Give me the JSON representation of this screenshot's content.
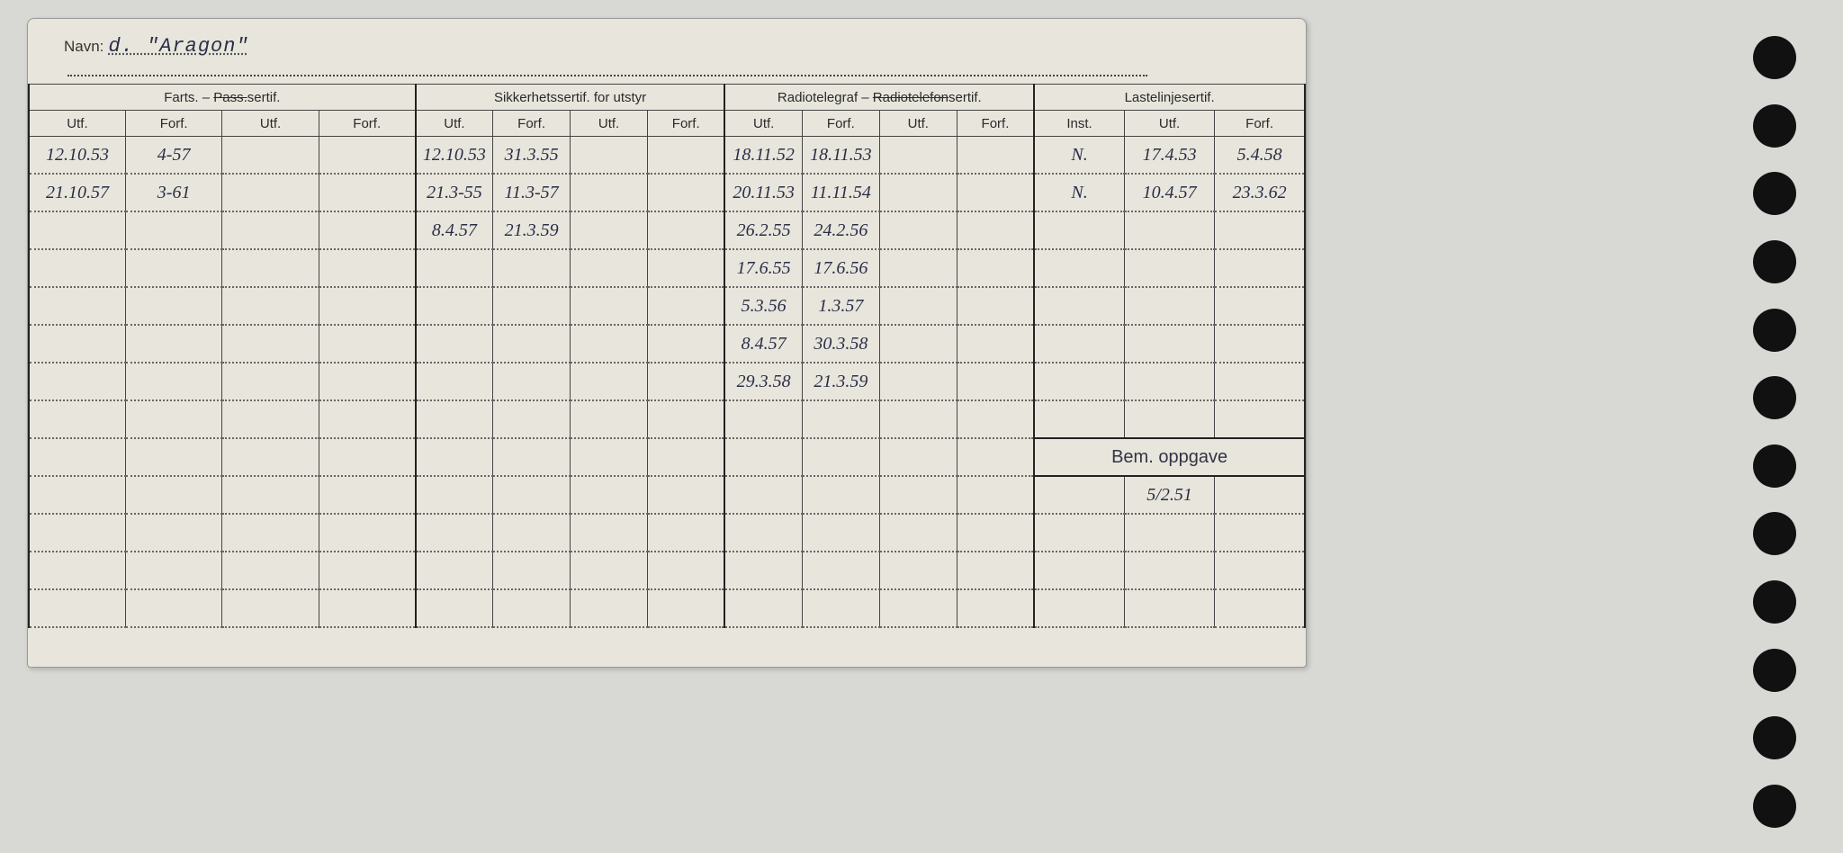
{
  "navn": {
    "label": "Navn:",
    "value": " d.  \"Aragon\""
  },
  "sections": {
    "farts": {
      "title": "Farts. – ",
      "strike": "Pass.",
      "tail": "sertif."
    },
    "sikker": {
      "title": "Sikkerhetssertif. for utstyr"
    },
    "radio": {
      "title_pre": "Radiotelegraf – ",
      "strike": "Radiotelefon",
      "tail": "sertif."
    },
    "laste": {
      "title": "Lastelinjesertif."
    }
  },
  "sub": {
    "utf": "Utf.",
    "forf": "Forf.",
    "inst": "Inst."
  },
  "bem": {
    "label": "Bem. oppgave",
    "value": "5/2.51"
  },
  "rows": [
    {
      "farts": [
        "12.10.53",
        "4-57",
        "",
        ""
      ],
      "sikker": [
        "12.10.53",
        "31.3.55",
        "",
        ""
      ],
      "radio": [
        "18.11.52",
        "18.11.53",
        "",
        ""
      ],
      "laste": [
        "N.",
        "17.4.53",
        "5.4.58"
      ]
    },
    {
      "farts": [
        "21.10.57",
        "3-61",
        "",
        ""
      ],
      "sikker": [
        "21.3-55",
        "11.3-57",
        "",
        ""
      ],
      "radio": [
        "20.11.53",
        "11.11.54",
        "",
        ""
      ],
      "laste": [
        "N.",
        "10.4.57",
        "23.3.62"
      ]
    },
    {
      "farts": [
        "",
        "",
        "",
        ""
      ],
      "sikker": [
        "8.4.57",
        "21.3.59",
        "",
        ""
      ],
      "radio": [
        "26.2.55",
        "24.2.56",
        "",
        ""
      ],
      "laste": [
        "",
        "",
        ""
      ]
    },
    {
      "farts": [
        "",
        "",
        "",
        ""
      ],
      "sikker": [
        "",
        "",
        "",
        ""
      ],
      "radio": [
        "17.6.55",
        "17.6.56",
        "",
        ""
      ],
      "laste": [
        "",
        "",
        ""
      ]
    },
    {
      "farts": [
        "",
        "",
        "",
        ""
      ],
      "sikker": [
        "",
        "",
        "",
        ""
      ],
      "radio": [
        "5.3.56",
        "1.3.57",
        "",
        ""
      ],
      "laste": [
        "",
        "",
        ""
      ]
    },
    {
      "farts": [
        "",
        "",
        "",
        ""
      ],
      "sikker": [
        "",
        "",
        "",
        ""
      ],
      "radio": [
        "8.4.57",
        "30.3.58",
        "",
        ""
      ],
      "laste": [
        "",
        "",
        ""
      ]
    },
    {
      "farts": [
        "",
        "",
        "",
        ""
      ],
      "sikker": [
        "",
        "",
        "",
        ""
      ],
      "radio": [
        "29.3.58",
        "21.3.59",
        "",
        ""
      ],
      "laste": [
        "",
        "",
        ""
      ]
    }
  ],
  "blank_rows_before_bem": 1,
  "blank_rows_after_bem": 4,
  "colors": {
    "page_bg": "#d8d8d4",
    "card_bg": "#e8e6dc",
    "ink": "#2a2e48",
    "pencil": "#555560",
    "rule": "#444444",
    "hole": "#111111"
  },
  "holes_count": 12
}
